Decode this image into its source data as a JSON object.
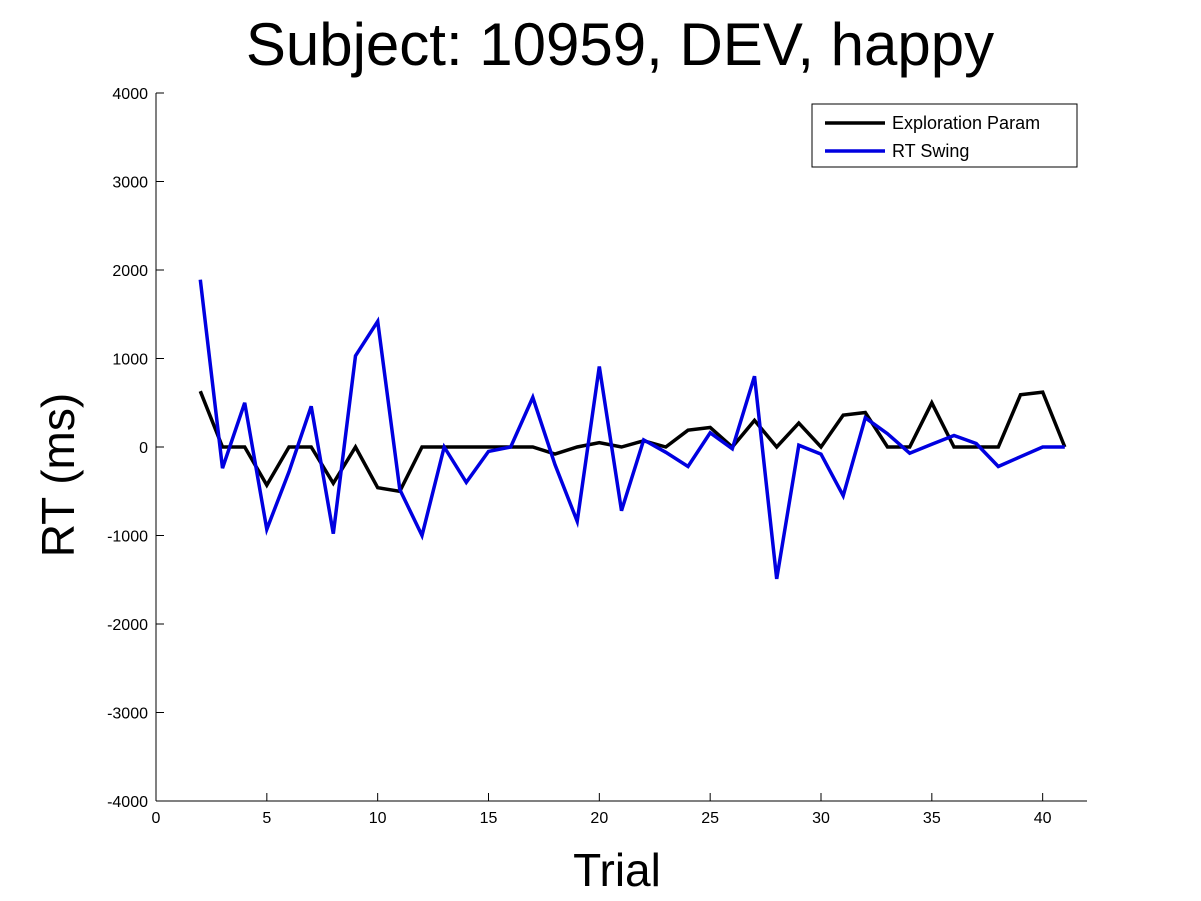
{
  "chart_data": {
    "type": "line",
    "title": "Subject: 10959, DEV, happy",
    "xlabel": "Trial",
    "ylabel": "RT (ms)",
    "xlim": [
      0,
      42
    ],
    "ylim": [
      -4000,
      4000
    ],
    "x_ticks": [
      0,
      5,
      10,
      15,
      20,
      25,
      30,
      35,
      40
    ],
    "y_ticks": [
      4000,
      3000,
      2000,
      1000,
      0,
      -1000,
      -2000,
      -3000,
      -4000
    ],
    "grid": false,
    "legend_position": "top-right",
    "x": [
      2,
      3,
      4,
      5,
      6,
      7,
      8,
      9,
      10,
      11,
      12,
      13,
      14,
      15,
      16,
      17,
      18,
      19,
      20,
      21,
      22,
      23,
      24,
      25,
      26,
      27,
      28,
      29,
      30,
      31,
      32,
      33,
      34,
      35,
      36,
      37,
      38,
      39,
      40,
      41
    ],
    "series": [
      {
        "name": "Exploration Param",
        "color": "#000000",
        "values": [
          630,
          0,
          0,
          -430,
          0,
          0,
          -410,
          0,
          -460,
          -500,
          0,
          0,
          0,
          0,
          0,
          0,
          -80,
          0,
          50,
          0,
          70,
          0,
          190,
          220,
          0,
          300,
          0,
          270,
          0,
          360,
          390,
          0,
          0,
          500,
          0,
          0,
          0,
          590,
          620,
          0
        ]
      },
      {
        "name": "RT Swing",
        "color": "#0000e0",
        "values": [
          1890,
          -240,
          500,
          -930,
          -280,
          460,
          -980,
          1030,
          1420,
          -480,
          -1000,
          0,
          -400,
          -50,
          0,
          560,
          -200,
          -840,
          910,
          -720,
          80,
          -60,
          -220,
          160,
          -20,
          800,
          -1490,
          20,
          -80,
          -550,
          330,
          150,
          -70,
          30,
          130,
          40,
          -220,
          -110,
          0,
          0
        ]
      }
    ]
  }
}
